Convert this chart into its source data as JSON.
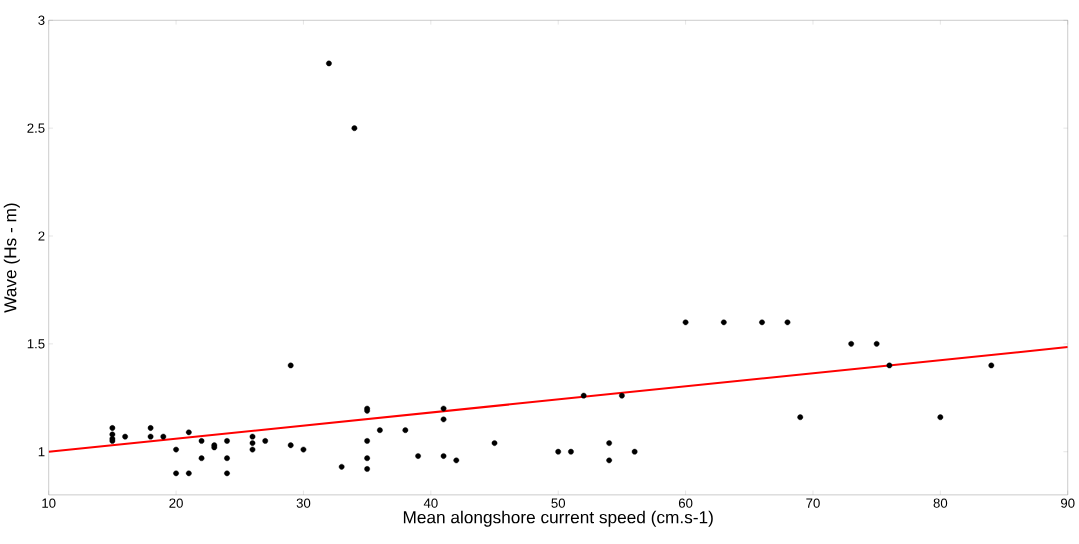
{
  "chart_data": {
    "type": "scatter",
    "xlabel": "Mean alongshore current speed (cm.s-1)",
    "ylabel": "Wave (Hs - m)",
    "xlim": [
      10,
      90
    ],
    "ylim": [
      0.8,
      3
    ],
    "xticks": [
      10,
      20,
      30,
      40,
      50,
      60,
      70,
      80,
      90
    ],
    "yticks": [
      1,
      1.5,
      2,
      2.5,
      3
    ],
    "grid": false,
    "series": [
      {
        "marker": "circle",
        "color": "#000000",
        "x": [
          15,
          15,
          15,
          15,
          16,
          18,
          18,
          19,
          20,
          20,
          21,
          21,
          22,
          22,
          23,
          23,
          24,
          24,
          24,
          26,
          26,
          26,
          27,
          29,
          29,
          30,
          32,
          33,
          34,
          35,
          35,
          35,
          35,
          35,
          36,
          38,
          39,
          41,
          41,
          41,
          42,
          45,
          50,
          51,
          52,
          54,
          54,
          55,
          56,
          60,
          63,
          66,
          68,
          69,
          73,
          75,
          76,
          80,
          84
        ],
        "values": [
          1.11,
          1.08,
          1.06,
          1.05,
          1.07,
          1.11,
          1.07,
          1.07,
          1.01,
          0.9,
          1.09,
          0.9,
          1.05,
          0.97,
          1.03,
          1.02,
          1.05,
          0.97,
          0.9,
          1.07,
          1.04,
          1.01,
          1.05,
          1.4,
          1.03,
          1.01,
          2.8,
          0.93,
          2.5,
          1.2,
          1.19,
          1.05,
          0.97,
          0.92,
          1.1,
          1.1,
          0.98,
          1.2,
          1.15,
          0.98,
          0.96,
          1.04,
          1.0,
          1.0,
          1.26,
          1.04,
          0.96,
          1.26,
          1.0,
          1.6,
          1.6,
          1.6,
          1.6,
          1.16,
          1.5,
          1.5,
          1.4,
          1.16,
          1.4
        ]
      },
      {
        "type": "line",
        "marker": "none",
        "color": "#ff0000",
        "x": [
          10,
          90
        ],
        "values": [
          1.0,
          1.485
        ]
      }
    ]
  }
}
